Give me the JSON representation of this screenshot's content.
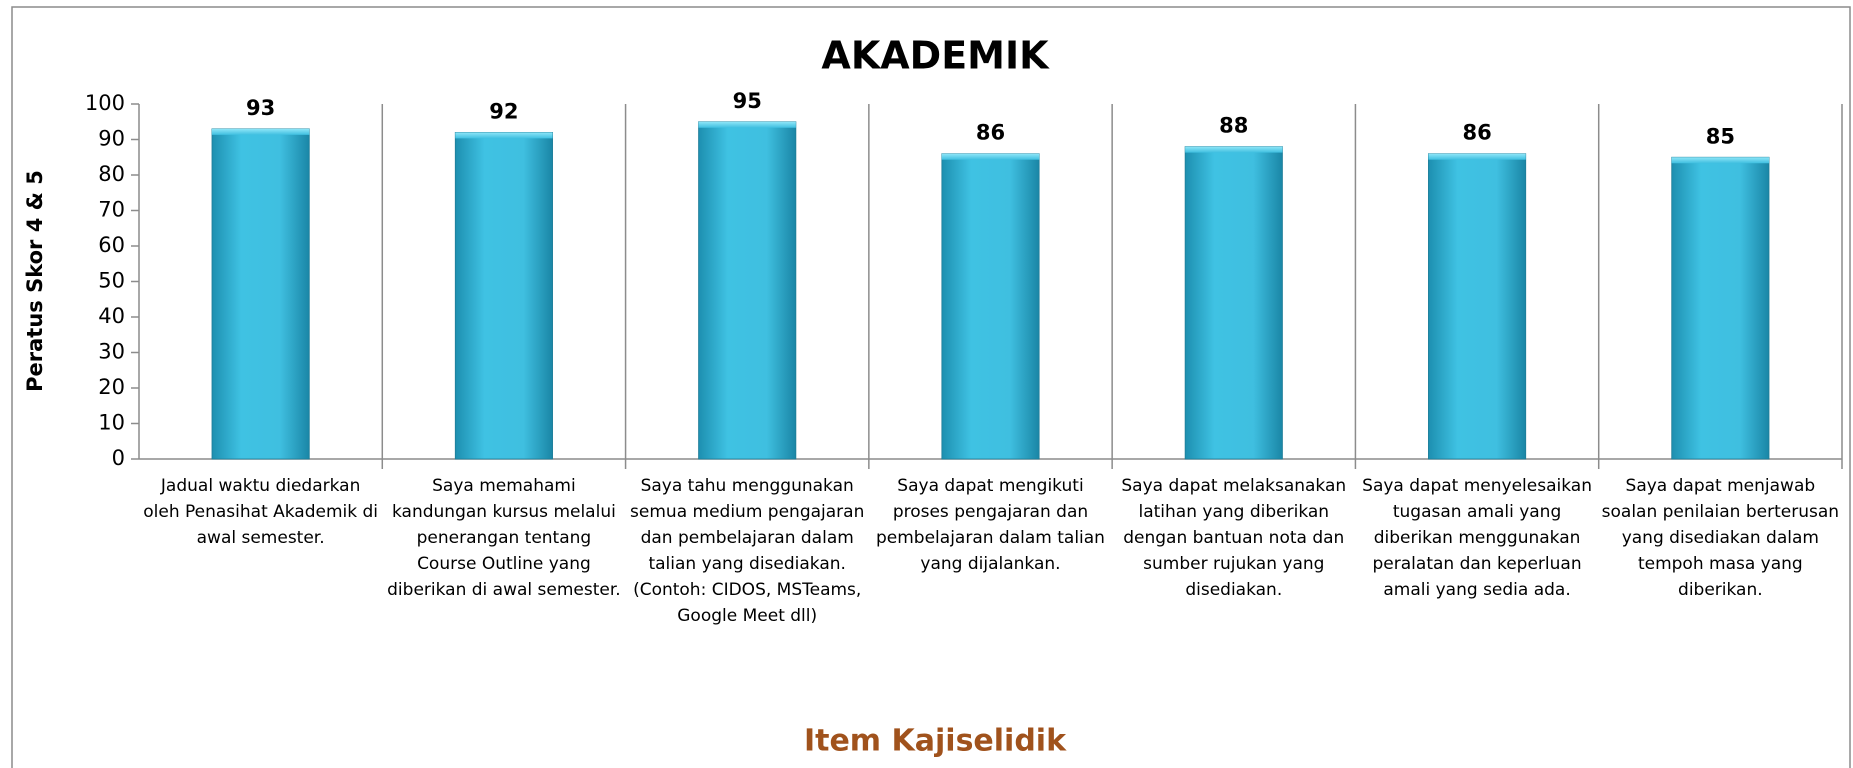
{
  "chart_data": {
    "type": "bar",
    "title": "AKADEMIK",
    "x_label": "Item Kajiselidik",
    "y_label": "Peratus Skor 4 & 5",
    "categories": [
      "Jadual waktu diedarkan oleh Penasihat Akademik di awal semester.",
      "Saya memahami kandungan kursus melalui penerangan tentang Course Outline yang diberikan di awal semester.",
      "Saya tahu menggunakan semua medium pengajaran dan pembelajaran dalam talian yang disediakan. (Contoh: CIDOS, MSTeams, Google Meet dll)",
      "Saya dapat mengikuti proses pengajaran dan pembelajaran dalam talian yang dijalankan.",
      "Saya dapat melaksanakan latihan yang diberikan dengan bantuan nota dan sumber rujukan yang disediakan.",
      "Saya dapat menyelesaikan tugasan amali yang diberikan menggunakan peralatan dan keperluan amali yang sedia ada.",
      "Saya dapat menjawab soalan penilaian berterusan yang disediakan dalam tempoh masa yang diberikan."
    ],
    "values": [
      93,
      92,
      95,
      86,
      88,
      86,
      85
    ],
    "color": "#3fbfe0",
    "ylim": [
      0,
      100
    ],
    "yticks": [
      0,
      10,
      20,
      30,
      40,
      50,
      60,
      70,
      80,
      90,
      100
    ]
  }
}
